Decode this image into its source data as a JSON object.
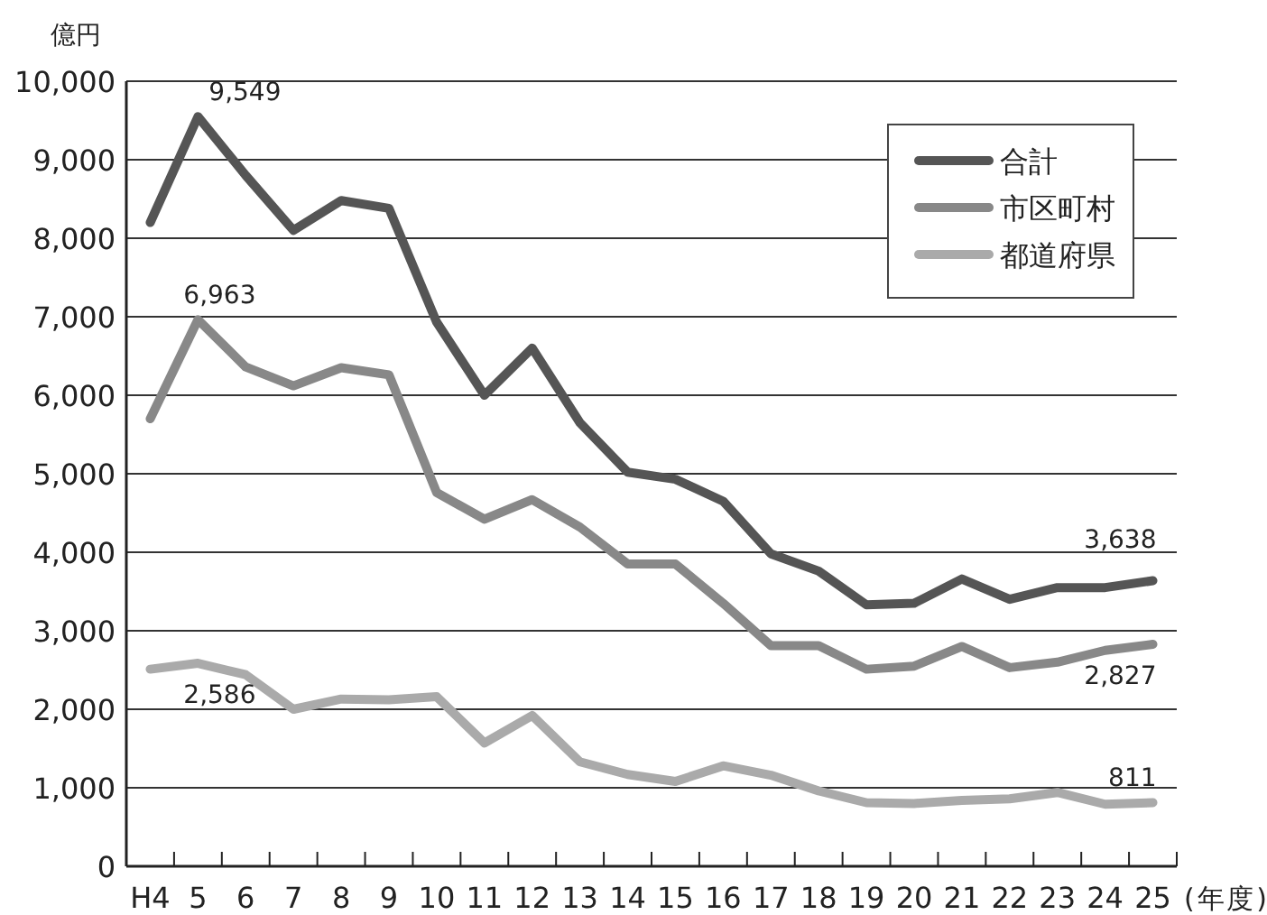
{
  "chart_data": {
    "type": "line",
    "ylabel": "億円",
    "xlabel": "(年度)",
    "categories": [
      "H4",
      "5",
      "6",
      "7",
      "8",
      "9",
      "10",
      "11",
      "12",
      "13",
      "14",
      "15",
      "16",
      "17",
      "18",
      "19",
      "20",
      "21",
      "22",
      "23",
      "24",
      "25"
    ],
    "series": [
      {
        "name": "合計",
        "color": "#555555",
        "values": [
          8200,
          9549,
          8800,
          8100,
          8480,
          8380,
          6930,
          6000,
          6600,
          5650,
          5020,
          4930,
          4650,
          3980,
          3760,
          3330,
          3350,
          3660,
          3400,
          3550,
          3550,
          3638
        ],
        "value_labels": [
          null,
          "9,549",
          null,
          null,
          null,
          null,
          null,
          null,
          null,
          null,
          null,
          null,
          null,
          null,
          null,
          null,
          null,
          null,
          null,
          null,
          null,
          "3,638"
        ]
      },
      {
        "name": "市区町村",
        "color": "#888888",
        "values": [
          5700,
          6963,
          6360,
          6120,
          6350,
          6260,
          4760,
          4420,
          4670,
          4320,
          3850,
          3850,
          3350,
          2810,
          2810,
          2510,
          2550,
          2800,
          2530,
          2600,
          2750,
          2827
        ],
        "value_labels": [
          null,
          "6,963",
          null,
          null,
          null,
          null,
          null,
          null,
          null,
          null,
          null,
          null,
          null,
          null,
          null,
          null,
          null,
          null,
          null,
          null,
          null,
          "2,827"
        ]
      },
      {
        "name": "都道府県",
        "color": "#aaaaaa",
        "values": [
          2510,
          2586,
          2440,
          2000,
          2130,
          2120,
          2160,
          1570,
          1920,
          1330,
          1170,
          1080,
          1280,
          1160,
          960,
          810,
          800,
          840,
          860,
          940,
          790,
          811
        ],
        "value_labels": [
          null,
          "2,586",
          null,
          null,
          null,
          null,
          null,
          null,
          null,
          null,
          null,
          null,
          null,
          null,
          null,
          null,
          null,
          null,
          null,
          null,
          null,
          "811"
        ]
      }
    ],
    "ylim": [
      0,
      10000
    ],
    "yticks": [
      {
        "value": 0,
        "label": "0"
      },
      {
        "value": 1000,
        "label": "1,000"
      },
      {
        "value": 2000,
        "label": "2,000"
      },
      {
        "value": 3000,
        "label": "3,000"
      },
      {
        "value": 4000,
        "label": "4,000"
      },
      {
        "value": 5000,
        "label": "5,000"
      },
      {
        "value": 6000,
        "label": "6,000"
      },
      {
        "value": 7000,
        "label": "7,000"
      },
      {
        "value": 8000,
        "label": "8,000"
      },
      {
        "value": 9000,
        "label": "9,000"
      },
      {
        "value": 10000,
        "label": "10,000"
      }
    ],
    "grid": "y",
    "legend": "top right",
    "marker": "none",
    "line_style": "solid"
  }
}
